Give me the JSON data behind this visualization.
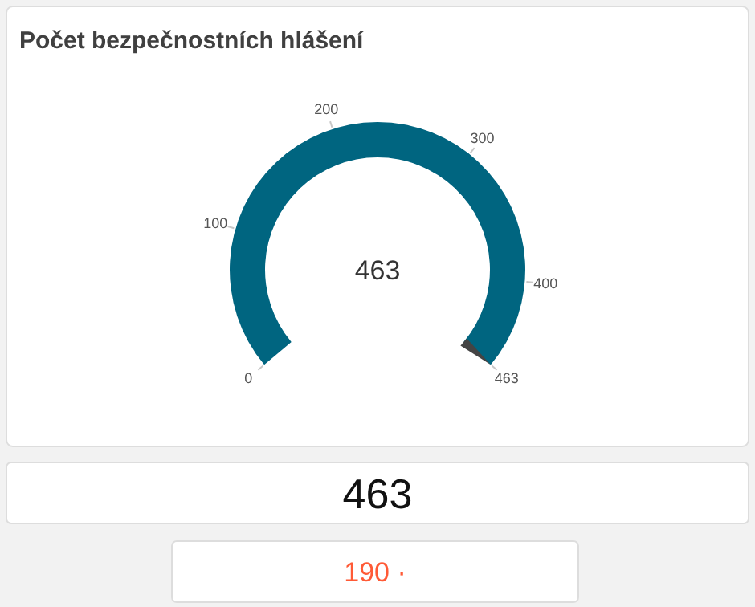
{
  "chart_data": {
    "type": "other",
    "title": "Počet bezpečnostních hlášení",
    "values": [
      463
    ],
    "color": "#006580",
    "data_labels": true,
    "annotations": [
      "0",
      "100",
      "200",
      "300",
      "400",
      "463",
      "463",
      "190 ·"
    ]
  }
}
